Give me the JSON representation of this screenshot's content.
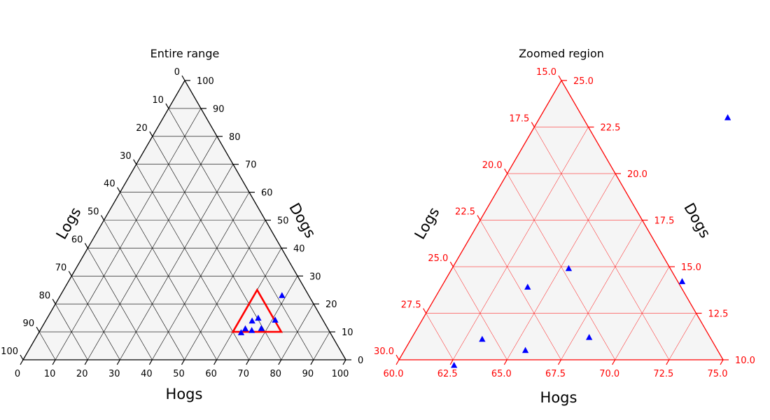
{
  "colors": {
    "left_frame": "#000000",
    "right_frame": "#ff0000",
    "fill": "#f5f5f5",
    "marker": "#0000ff",
    "zoom_box": "#ff0000"
  },
  "chart_data": [
    {
      "type": "scatter",
      "subtype": "ternary",
      "title": "Entire range",
      "axes": {
        "bottom": "Hogs",
        "left": "Logs",
        "right": "Dogs"
      },
      "range": {
        "hogs": [
          0,
          100
        ],
        "logs": [
          0,
          100
        ],
        "dogs": [
          0,
          100
        ]
      },
      "ticks": {
        "bottom": [
          "0",
          "10",
          "20",
          "30",
          "40",
          "50",
          "60",
          "70",
          "80",
          "90",
          "100"
        ],
        "left": [
          "0",
          "10",
          "20",
          "30",
          "40",
          "50",
          "60",
          "70",
          "80",
          "90",
          "100"
        ],
        "right": [
          "0",
          "10",
          "20",
          "30",
          "40",
          "50",
          "60",
          "70",
          "80",
          "90",
          "100"
        ]
      },
      "grid": true,
      "zoom_region": {
        "hogs": [
          60,
          75
        ],
        "logs": [
          15,
          30
        ],
        "dogs": [
          10,
          25
        ]
      },
      "points": [
        {
          "hogs": 68.7,
          "logs": 8.3,
          "dogs": 23.0
        },
        {
          "hogs": 65.4,
          "logs": 19.7,
          "dogs": 14.9
        },
        {
          "hogs": 64.0,
          "logs": 22.1,
          "dogs": 13.9
        },
        {
          "hogs": 71.0,
          "logs": 14.8,
          "dogs": 14.2
        },
        {
          "hogs": 63.3,
          "logs": 25.6,
          "dogs": 11.1
        },
        {
          "hogs": 65.6,
          "logs": 23.9,
          "dogs": 10.5
        },
        {
          "hogs": 68.2,
          "logs": 20.6,
          "dogs": 11.2
        },
        {
          "hogs": 62.7,
          "logs": 27.6,
          "dogs": 9.7
        }
      ]
    },
    {
      "type": "scatter",
      "subtype": "ternary",
      "title": "Zoomed region",
      "axes": {
        "bottom": "Hogs",
        "left": "Logs",
        "right": "Dogs"
      },
      "range": {
        "hogs": [
          60,
          75
        ],
        "logs": [
          15,
          30
        ],
        "dogs": [
          10,
          25
        ]
      },
      "ticks": {
        "bottom": [
          "60.0",
          "62.5",
          "65.0",
          "67.5",
          "70.0",
          "72.5",
          "75.0"
        ],
        "left": [
          "15.0",
          "17.5",
          "20.0",
          "22.5",
          "25.0",
          "27.5",
          "30.0"
        ],
        "right": [
          "10.0",
          "12.5",
          "15.0",
          "17.5",
          "20.0",
          "22.5",
          "25.0"
        ]
      },
      "grid": true,
      "points": [
        {
          "hogs": 68.7,
          "logs": 8.3,
          "dogs": 23.0
        },
        {
          "hogs": 65.4,
          "logs": 19.7,
          "dogs": 14.9
        },
        {
          "hogs": 64.0,
          "logs": 22.1,
          "dogs": 13.9
        },
        {
          "hogs": 71.0,
          "logs": 14.8,
          "dogs": 14.2
        },
        {
          "hogs": 63.3,
          "logs": 25.6,
          "dogs": 11.1
        },
        {
          "hogs": 65.6,
          "logs": 23.9,
          "dogs": 10.5
        },
        {
          "hogs": 68.2,
          "logs": 20.6,
          "dogs": 11.2
        },
        {
          "hogs": 62.7,
          "logs": 27.6,
          "dogs": 9.7
        }
      ]
    }
  ]
}
